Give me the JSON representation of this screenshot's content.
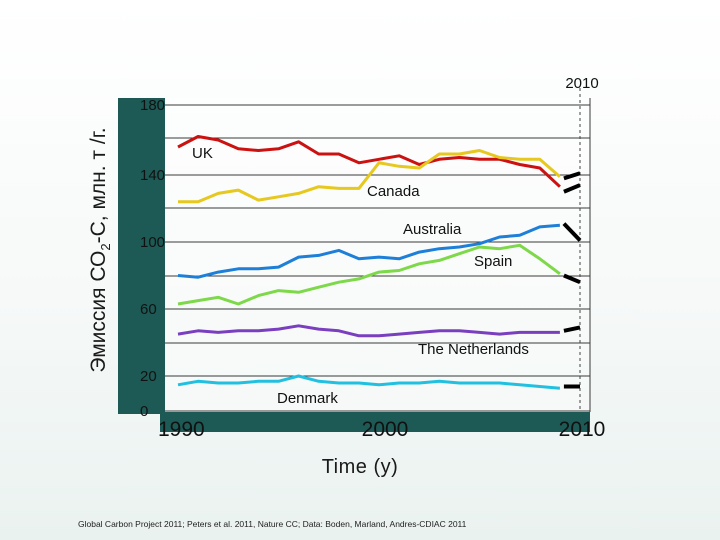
{
  "ylabel": {
    "prefix": "Эмиссия СО",
    "sub": "2",
    "suffix": "-С, млн. т /г."
  },
  "year_marker": "2010",
  "source": "Global Carbon Project 2011; Peters et al. 2011, Nature CC; Data: Boden, Marland, Andres-CDIAC 2011",
  "chart_data": {
    "type": "line",
    "xlabel": "Time (y)",
    "ylabel": "Эмиссия СО2-С, млн. т /г.",
    "xlim": [
      1989,
      2011
    ],
    "ylim": [
      0,
      185
    ],
    "x_ticks": [
      1990,
      2000,
      2010
    ],
    "x_tick_labels": [
      "1990",
      "2000",
      "2010"
    ],
    "y_ticks": [
      0,
      20,
      60,
      100,
      140,
      180
    ],
    "y_tick_labels": [
      "0",
      "20",
      "60",
      "100",
      "140",
      "180"
    ],
    "x": [
      1990,
      1991,
      1992,
      1993,
      1994,
      1995,
      1996,
      1997,
      1998,
      1999,
      2000,
      2001,
      2002,
      2003,
      2004,
      2005,
      2006,
      2007,
      2008,
      2009
    ],
    "series": [
      {
        "name": "UK",
        "color": "#cc1111",
        "values": [
          156,
          162,
          160,
          155,
          154,
          155,
          159,
          152,
          152,
          147,
          149,
          151,
          146,
          149,
          150,
          149,
          149,
          146,
          144,
          133
        ],
        "projection": [
          [
            2009.2,
            138
          ],
          [
            2010,
            141
          ]
        ]
      },
      {
        "name": "Canada",
        "color": "#e6c81e",
        "values": [
          124,
          124,
          129,
          131,
          125,
          127,
          129,
          133,
          132,
          132,
          147,
          145,
          144,
          152,
          152,
          154,
          150,
          149,
          149,
          139
        ],
        "projection": [
          [
            2009.2,
            130
          ],
          [
            2010,
            134
          ]
        ]
      },
      {
        "name": "Australia",
        "color": "#1e7fd8",
        "values": [
          80,
          79,
          82,
          84,
          84,
          85,
          91,
          92,
          95,
          90,
          91,
          90,
          94,
          96,
          97,
          99,
          103,
          104,
          109,
          110
        ],
        "projection": [
          [
            2009.2,
            111
          ],
          [
            2010,
            101
          ]
        ]
      },
      {
        "name": "Spain",
        "color": "#7dd84a",
        "values": [
          63,
          65,
          67,
          63,
          68,
          71,
          70,
          73,
          76,
          78,
          82,
          83,
          87,
          89,
          93,
          97,
          96,
          98,
          90,
          81
        ],
        "projection": [
          [
            2009.2,
            80
          ],
          [
            2010,
            76
          ]
        ]
      },
      {
        "name": "The Netherlands",
        "color": "#7a3fbf",
        "values": [
          45,
          47,
          46,
          47,
          47,
          48,
          50,
          48,
          47,
          44,
          44,
          45,
          46,
          47,
          47,
          46,
          45,
          46,
          46,
          46
        ],
        "projection": [
          [
            2009.2,
            47
          ],
          [
            2010,
            49
          ]
        ]
      },
      {
        "name": "Denmark",
        "color": "#22c0e0",
        "values": [
          15,
          17,
          16,
          16,
          17,
          17,
          20,
          17,
          16,
          16,
          15,
          16,
          16,
          17,
          16,
          16,
          16,
          15,
          14,
          13
        ],
        "projection": [
          [
            2009.2,
            14
          ],
          [
            2010,
            14
          ]
        ]
      }
    ]
  }
}
